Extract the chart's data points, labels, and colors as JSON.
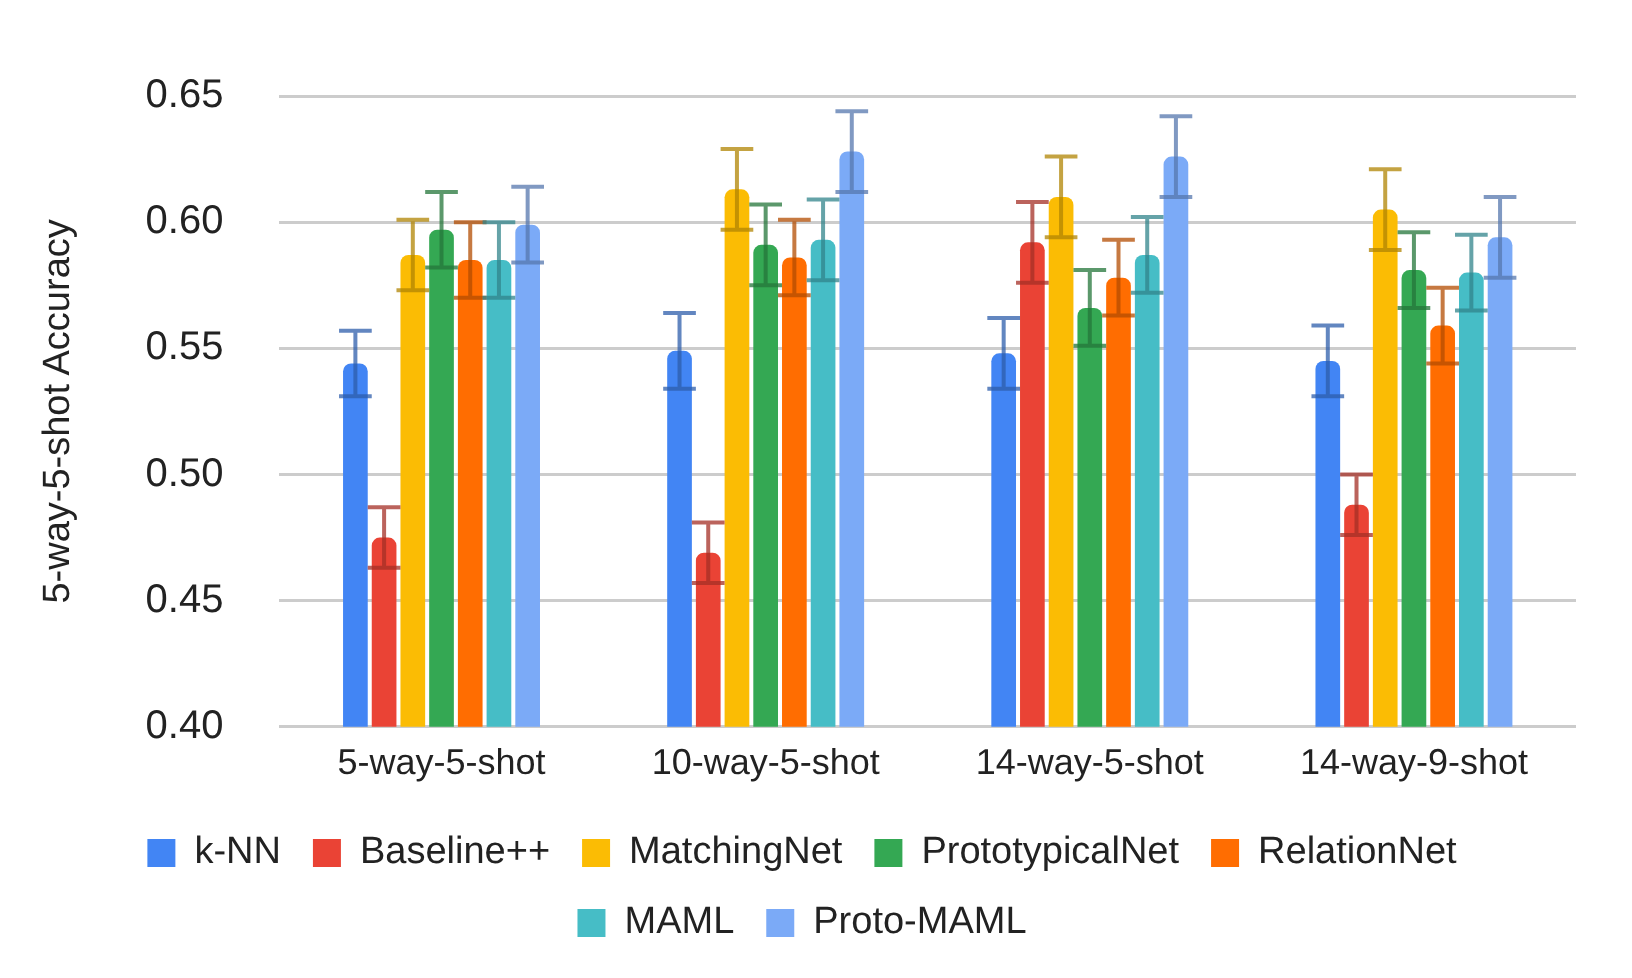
{
  "chart_data": {
    "type": "bar",
    "ylabel": "5-way-5-shot Accuracy",
    "categories": [
      "5-way-5-shot",
      "10-way-5-shot",
      "14-way-5-shot",
      "14-way-9-shot"
    ],
    "series": [
      {
        "name": "k-NN",
        "color": "#4285f4",
        "values": [
          0.544,
          0.549,
          0.548,
          0.545
        ],
        "errors": [
          0.013,
          0.015,
          0.014,
          0.014
        ]
      },
      {
        "name": "Baseline++",
        "color": "#ea4335",
        "values": [
          0.475,
          0.469,
          0.592,
          0.488
        ],
        "errors": [
          0.012,
          0.012,
          0.016,
          0.012
        ]
      },
      {
        "name": "MatchingNet",
        "color": "#fbbc04",
        "values": [
          0.587,
          0.613,
          0.61,
          0.605
        ],
        "errors": [
          0.014,
          0.016,
          0.016,
          0.016
        ]
      },
      {
        "name": "PrototypicalNet",
        "color": "#34a853",
        "values": [
          0.597,
          0.591,
          0.566,
          0.581
        ],
        "errors": [
          0.015,
          0.016,
          0.015,
          0.015
        ]
      },
      {
        "name": "RelationNet",
        "color": "#ff6d01",
        "values": [
          0.585,
          0.586,
          0.578,
          0.559
        ],
        "errors": [
          0.015,
          0.015,
          0.015,
          0.015
        ]
      },
      {
        "name": "MAML",
        "color": "#46bdc6",
        "values": [
          0.585,
          0.593,
          0.587,
          0.58
        ],
        "errors": [
          0.015,
          0.016,
          0.015,
          0.015
        ]
      },
      {
        "name": "Proto-MAML",
        "color": "#7baaf7",
        "values": [
          0.599,
          0.628,
          0.626,
          0.594
        ],
        "errors": [
          0.015,
          0.016,
          0.016,
          0.016
        ]
      }
    ],
    "ylim": [
      0.4,
      0.65
    ],
    "yticks": [
      {
        "value": 0.4,
        "label": "0.40"
      },
      {
        "value": 0.45,
        "label": "0.45"
      },
      {
        "value": 0.5,
        "label": "0.50"
      },
      {
        "value": 0.55,
        "label": "0.55"
      },
      {
        "value": 0.6,
        "label": "0.60"
      },
      {
        "value": 0.65,
        "label": "0.65"
      }
    ],
    "grid": "y",
    "legend": "bottom"
  }
}
